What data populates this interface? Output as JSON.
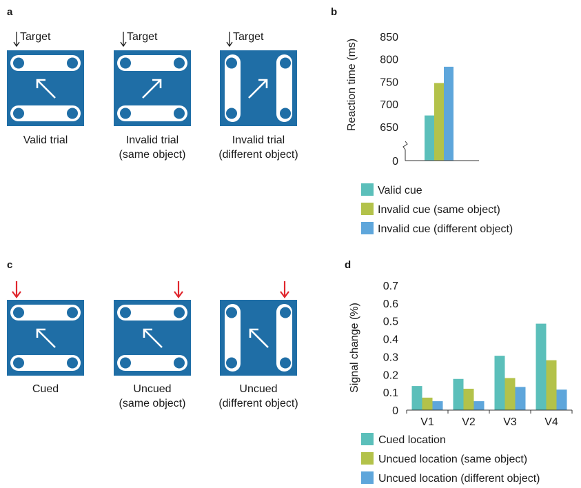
{
  "panels": {
    "a": {
      "letter": "a",
      "target_label": "Target",
      "items": [
        {
          "label_lines": [
            "Valid trial"
          ],
          "layout": "horizontal",
          "arrow": "up-left"
        },
        {
          "label_lines": [
            "Invalid trial",
            "(same object)"
          ],
          "layout": "horizontal",
          "arrow": "up-right"
        },
        {
          "label_lines": [
            "Invalid trial",
            "(different object)"
          ],
          "layout": "vertical",
          "arrow": "up-right"
        }
      ]
    },
    "b": {
      "letter": "b",
      "chart_data": {
        "type": "bar",
        "ylabel": "Reaction time (ms)",
        "yticks": [
          650,
          700,
          750,
          800,
          850
        ],
        "ylim": [
          630,
          850
        ],
        "axis_break": true,
        "zero_label": "0",
        "series": [
          {
            "name": "Valid cue",
            "value": 675,
            "color": "#5bbfba"
          },
          {
            "name": "Invalid cue (same object)",
            "value": 747,
            "color": "#b3c24a"
          },
          {
            "name": "Invalid cue (different object)",
            "value": 783,
            "color": "#5ea6db"
          }
        ],
        "legend_placement": "bottom"
      }
    },
    "c": {
      "letter": "c",
      "items": [
        {
          "label_lines": [
            "Cued"
          ],
          "layout": "horizontal",
          "arrow": "up-left",
          "cue": "left"
        },
        {
          "label_lines": [
            "Uncued",
            "(same object)"
          ],
          "layout": "horizontal",
          "arrow": "up-left",
          "cue": "right"
        },
        {
          "label_lines": [
            "Uncued",
            "(different object)"
          ],
          "layout": "vertical",
          "arrow": "up-left",
          "cue": "right"
        }
      ],
      "cue_color": "#e0262d"
    },
    "d": {
      "letter": "d",
      "chart_data": {
        "type": "bar",
        "ylabel": "Signal change (%)",
        "categories": [
          "V1",
          "V2",
          "V3",
          "V4"
        ],
        "ylim": [
          0,
          0.7
        ],
        "yticks": [
          0,
          0.1,
          0.2,
          0.3,
          0.4,
          0.5,
          0.6,
          0.7
        ],
        "series": [
          {
            "name": "Cued location",
            "values": [
              0.135,
              0.175,
              0.305,
              0.485
            ],
            "color": "#5bbfba"
          },
          {
            "name": "Uncued location (same object)",
            "values": [
              0.07,
              0.12,
              0.18,
              0.28
            ],
            "color": "#b3c24a"
          },
          {
            "name": "Uncued location (different object)",
            "values": [
              0.05,
              0.05,
              0.13,
              0.115
            ],
            "color": "#5ea6db"
          }
        ],
        "legend_placement": "bottom"
      }
    }
  },
  "colors": {
    "square": "#1f6ea6",
    "object_fill": "#ffffff",
    "dot": "#1f6ea6",
    "axis": "#333333"
  }
}
